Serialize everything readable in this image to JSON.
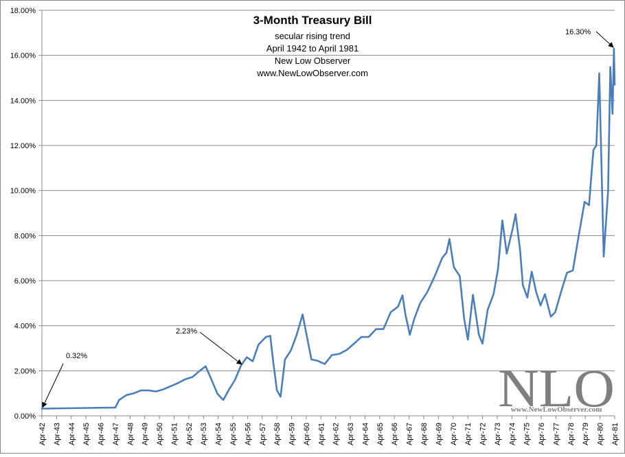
{
  "chart_data": {
    "type": "line",
    "title": "3-Month Treasury Bill",
    "subtitles": [
      "secular rising trend",
      "April 1942 to April 1981",
      "New Low Observer",
      "www.NewLowObserver.com"
    ],
    "xlabel": "",
    "ylabel": "",
    "ylim": [
      0,
      18
    ],
    "yticks": [
      "0.00%",
      "2.00%",
      "4.00%",
      "6.00%",
      "8.00%",
      "10.00%",
      "12.00%",
      "14.00%",
      "16.00%",
      "18.00%"
    ],
    "ytick_values": [
      0,
      2,
      4,
      6,
      8,
      10,
      12,
      14,
      16,
      18
    ],
    "xticks": [
      "Apr-42",
      "Apr-43",
      "Apr-44",
      "Apr-45",
      "Apr-46",
      "Apr-47",
      "Apr-48",
      "Apr-49",
      "Apr-50",
      "Apr-51",
      "Apr-52",
      "Apr-53",
      "Apr-54",
      "Apr-55",
      "Apr-56",
      "Apr-57",
      "Apr-58",
      "Apr-59",
      "Apr-60",
      "Apr-61",
      "Apr-62",
      "Apr-63",
      "Apr-64",
      "Apr-65",
      "Apr-66",
      "Apr-67",
      "Apr-68",
      "Apr-69",
      "Apr-70",
      "Apr-71",
      "Apr-72",
      "Apr-73",
      "Apr-74",
      "Apr-75",
      "Apr-76",
      "Apr-77",
      "Apr-78",
      "Apr-79",
      "Apr-80",
      "Apr-81"
    ],
    "xlim": [
      1942.25,
      1981.25
    ],
    "grid": true,
    "legend": "none",
    "series_color": "#4a7ebb",
    "series": [
      {
        "values": [
          [
            1942.25,
            0.32
          ],
          [
            1947.25,
            0.37
          ],
          [
            1947.5,
            0.7
          ],
          [
            1948.0,
            0.92
          ],
          [
            1948.5,
            1.0
          ],
          [
            1949.0,
            1.13
          ],
          [
            1949.5,
            1.13
          ],
          [
            1950.0,
            1.08
          ],
          [
            1950.5,
            1.17
          ],
          [
            1951.0,
            1.31
          ],
          [
            1951.5,
            1.45
          ],
          [
            1952.0,
            1.62
          ],
          [
            1952.5,
            1.72
          ],
          [
            1953.0,
            2.0
          ],
          [
            1953.4,
            2.2
          ],
          [
            1953.8,
            1.6
          ],
          [
            1954.2,
            0.98
          ],
          [
            1954.6,
            0.7
          ],
          [
            1955.0,
            1.18
          ],
          [
            1955.4,
            1.6
          ],
          [
            1955.8,
            2.23
          ],
          [
            1956.2,
            2.6
          ],
          [
            1956.6,
            2.42
          ],
          [
            1957.0,
            3.16
          ],
          [
            1957.5,
            3.5
          ],
          [
            1957.8,
            3.55
          ],
          [
            1958.0,
            2.4
          ],
          [
            1958.25,
            1.13
          ],
          [
            1958.5,
            0.85
          ],
          [
            1958.8,
            2.5
          ],
          [
            1959.2,
            2.9
          ],
          [
            1959.6,
            3.6
          ],
          [
            1960.0,
            4.5
          ],
          [
            1960.3,
            3.5
          ],
          [
            1960.6,
            2.5
          ],
          [
            1961.0,
            2.45
          ],
          [
            1961.5,
            2.3
          ],
          [
            1962.0,
            2.7
          ],
          [
            1962.5,
            2.75
          ],
          [
            1963.0,
            2.92
          ],
          [
            1963.5,
            3.2
          ],
          [
            1964.0,
            3.5
          ],
          [
            1964.5,
            3.5
          ],
          [
            1965.0,
            3.85
          ],
          [
            1965.5,
            3.85
          ],
          [
            1966.0,
            4.6
          ],
          [
            1966.5,
            4.85
          ],
          [
            1966.8,
            5.35
          ],
          [
            1967.0,
            4.5
          ],
          [
            1967.3,
            3.6
          ],
          [
            1967.6,
            4.3
          ],
          [
            1968.0,
            5.0
          ],
          [
            1968.5,
            5.5
          ],
          [
            1969.0,
            6.2
          ],
          [
            1969.5,
            7.0
          ],
          [
            1969.8,
            7.25
          ],
          [
            1970.0,
            7.85
          ],
          [
            1970.3,
            6.6
          ],
          [
            1970.7,
            6.2
          ],
          [
            1971.0,
            4.3
          ],
          [
            1971.25,
            3.38
          ],
          [
            1971.6,
            5.37
          ],
          [
            1972.0,
            3.6
          ],
          [
            1972.25,
            3.2
          ],
          [
            1972.6,
            4.7
          ],
          [
            1973.0,
            5.4
          ],
          [
            1973.3,
            6.5
          ],
          [
            1973.6,
            8.67
          ],
          [
            1973.9,
            7.2
          ],
          [
            1974.3,
            8.3
          ],
          [
            1974.5,
            8.95
          ],
          [
            1974.8,
            7.4
          ],
          [
            1975.0,
            5.8
          ],
          [
            1975.3,
            5.25
          ],
          [
            1975.6,
            6.4
          ],
          [
            1975.9,
            5.5
          ],
          [
            1976.2,
            4.9
          ],
          [
            1976.5,
            5.4
          ],
          [
            1976.9,
            4.4
          ],
          [
            1977.2,
            4.6
          ],
          [
            1977.6,
            5.5
          ],
          [
            1978.0,
            6.35
          ],
          [
            1978.4,
            6.45
          ],
          [
            1978.8,
            8.0
          ],
          [
            1979.2,
            9.5
          ],
          [
            1979.5,
            9.35
          ],
          [
            1979.8,
            11.8
          ],
          [
            1980.0,
            12.0
          ],
          [
            1980.2,
            15.2
          ],
          [
            1980.5,
            7.07
          ],
          [
            1980.8,
            10.0
          ],
          [
            1980.95,
            15.48
          ],
          [
            1981.1,
            13.4
          ],
          [
            1981.2,
            16.3
          ],
          [
            1981.25,
            14.7
          ]
        ]
      }
    ],
    "annotations": [
      {
        "text": "0.32%",
        "x": 1942.25,
        "y": 0.32
      },
      {
        "text": "2.23%",
        "x": 1955.8,
        "y": 2.23
      },
      {
        "text": "16.30%",
        "x": 1981.2,
        "y": 16.3
      }
    ]
  },
  "logo": {
    "letters": "NLO",
    "url": "www.NewLowObserver.com"
  },
  "colors": {
    "series": "#4a7ebb",
    "grid": "#888888",
    "logo": "#7f7f7f"
  }
}
